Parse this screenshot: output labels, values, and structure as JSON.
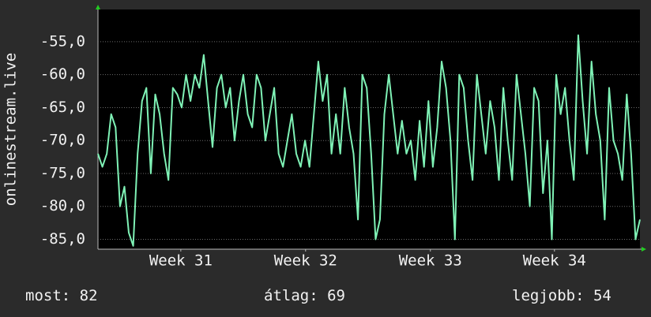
{
  "chart_data": {
    "type": "line",
    "y_label": "onlinestream.live",
    "x": [
      0,
      0.25,
      0.5,
      0.75,
      1,
      1.25,
      1.5,
      1.75,
      2,
      2.25,
      2.5,
      2.75,
      3,
      3.25,
      3.5,
      3.75,
      4,
      4.25,
      4.5,
      4.75,
      5,
      5.25,
      5.5,
      5.75,
      6,
      6.25,
      6.5,
      6.75,
      7,
      7.25,
      7.5,
      7.75,
      8,
      8.25,
      8.5,
      8.75,
      9,
      9.25,
      9.5,
      9.75,
      10,
      10.25,
      10.5,
      10.75,
      11,
      11.25,
      11.5,
      11.75,
      12,
      12.25,
      12.5,
      12.75,
      13,
      13.25,
      13.5,
      13.75,
      14,
      14.25,
      14.5,
      14.75,
      15,
      15.25,
      15.5,
      15.75,
      16,
      16.25,
      16.5,
      16.75,
      17,
      17.25,
      17.5,
      17.75,
      18,
      18.25,
      18.5,
      18.75,
      19,
      19.25,
      19.5,
      19.75,
      20,
      20.25,
      20.5,
      20.75,
      21,
      21.25,
      21.5,
      21.75,
      22,
      22.25,
      22.5,
      22.75,
      23,
      23.25,
      23.5,
      23.75,
      24,
      24.25,
      24.5,
      24.75,
      25,
      25.25,
      25.5,
      25.75,
      26,
      26.25,
      26.5,
      26.75,
      27,
      27.25,
      27.5,
      27.75,
      28,
      28.25,
      28.5,
      28.75,
      29,
      29.25,
      29.5,
      29.75,
      30,
      30.25,
      30.5,
      30.75
    ],
    "series": [
      {
        "name": "onlinestream.live",
        "color": "#7ff2b6",
        "values": [
          -72,
          -74,
          -72,
          -66,
          -68,
          -80,
          -77,
          -84,
          -86,
          -72,
          -64,
          -62,
          -75,
          -63,
          -66,
          -72,
          -76,
          -62,
          -63,
          -65,
          -60,
          -64,
          -60,
          -62,
          -57,
          -64,
          -71,
          -62,
          -60,
          -65,
          -62,
          -70,
          -64,
          -60,
          -66,
          -68,
          -60,
          -62,
          -70,
          -66,
          -62,
          -72,
          -74,
          -70,
          -66,
          -72,
          -74,
          -70,
          -74,
          -66,
          -58,
          -64,
          -60,
          -72,
          -66,
          -72,
          -62,
          -68,
          -72,
          -82,
          -60,
          -62,
          -72,
          -85,
          -82,
          -66,
          -60,
          -66,
          -72,
          -67,
          -72,
          -70,
          -76,
          -67,
          -74,
          -64,
          -74,
          -68,
          -58,
          -62,
          -70,
          -85,
          -60,
          -62,
          -70,
          -76,
          -60,
          -66,
          -72,
          -64,
          -68,
          -76,
          -62,
          -70,
          -76,
          -60,
          -66,
          -72,
          -80,
          -62,
          -64,
          -78,
          -70,
          -85,
          -60,
          -66,
          -62,
          -70,
          -76,
          -54,
          -64,
          -72,
          -58,
          -66,
          -70,
          -82,
          -62,
          -70,
          -72,
          -76,
          -63,
          -72,
          -85,
          -82
        ]
      }
    ],
    "xlim": [
      0,
      30.75
    ],
    "xticks": [
      {
        "value": 4.7,
        "label": "Week 31"
      },
      {
        "value": 11.78,
        "label": "Week 32"
      },
      {
        "value": 18.86,
        "label": "Week 33"
      },
      {
        "value": 25.9,
        "label": "Week 34"
      }
    ],
    "ylim": [
      -86.5,
      -50.1
    ],
    "yticks": [
      {
        "value": -85,
        "label": "-85,0"
      },
      {
        "value": -80,
        "label": "-80,0"
      },
      {
        "value": -75,
        "label": "-75,0"
      },
      {
        "value": -70,
        "label": "-70,0"
      },
      {
        "value": -65,
        "label": "-65,0"
      },
      {
        "value": -60,
        "label": "-60,0"
      },
      {
        "value": -55,
        "label": "-55,0"
      }
    ],
    "grid": true,
    "footer": [
      {
        "label": "most:",
        "value": 82
      },
      {
        "label": "átlag:",
        "value": 69
      },
      {
        "label": "legjobb:",
        "value": 54
      }
    ]
  }
}
